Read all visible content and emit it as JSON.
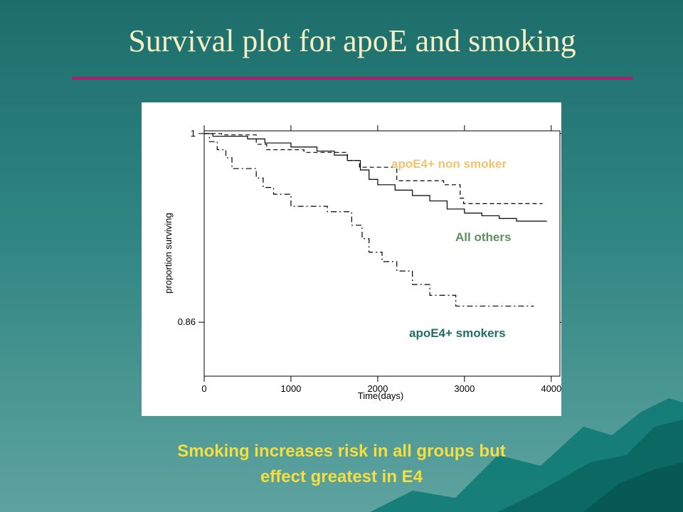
{
  "slide": {
    "title": "Survival plot for apoE and smoking",
    "caption_line1": "Smoking increases risk in all groups but",
    "caption_line2": "effect greatest in E4"
  },
  "colors": {
    "title": "#f6efc4",
    "rule": "#b01c6c",
    "caption": "#f4df3e",
    "label_non_smoker": "#f0c36e",
    "label_others": "#5f8f5e",
    "label_smokers": "#1f6e68"
  },
  "chart_data": {
    "type": "line",
    "xlabel": "Time(days)",
    "ylabel": "proportion surviving",
    "xlim": [
      0,
      4100
    ],
    "ylim": [
      0.82,
      1.002
    ],
    "x_ticks": [
      0,
      1000,
      2000,
      3000,
      4000
    ],
    "x_tick_labels": [
      "0",
      "1000",
      "2000",
      "3000",
      "4000"
    ],
    "y_ticks": [
      1,
      0.86
    ],
    "y_tick_labels": [
      "1",
      "0.86"
    ],
    "series": [
      {
        "name": "apoE4+ non smoker",
        "dash": "6,4",
        "x": [
          0,
          200,
          600,
          720,
          1150,
          1650,
          1790,
          2220,
          2760,
          2950,
          2990,
          3900
        ],
        "y": [
          1.0,
          0.999,
          0.992,
          0.988,
          0.986,
          0.98,
          0.975,
          0.965,
          0.962,
          0.952,
          0.948,
          0.948
        ]
      },
      {
        "name": "All others",
        "dash": "",
        "x": [
          0,
          100,
          500,
          700,
          1000,
          1300,
          1500,
          1650,
          1800,
          1900,
          2000,
          2200,
          2400,
          2600,
          2800,
          3000,
          3200,
          3400,
          3600,
          3950
        ],
        "y": [
          1.0,
          0.998,
          0.996,
          0.993,
          0.99,
          0.987,
          0.984,
          0.98,
          0.973,
          0.966,
          0.962,
          0.958,
          0.954,
          0.95,
          0.944,
          0.941,
          0.939,
          0.937,
          0.935,
          0.935
        ]
      },
      {
        "name": "apoE4+ smokers",
        "dash": "8,4,2,4",
        "x": [
          0,
          60,
          150,
          250,
          320,
          600,
          680,
          800,
          1000,
          1420,
          1700,
          1820,
          1900,
          2050,
          2220,
          2400,
          2600,
          2900,
          3800
        ],
        "y": [
          1.0,
          0.994,
          0.988,
          0.982,
          0.974,
          0.967,
          0.96,
          0.955,
          0.946,
          0.942,
          0.932,
          0.922,
          0.912,
          0.905,
          0.898,
          0.888,
          0.88,
          0.872,
          0.872
        ]
      }
    ],
    "annotations": {
      "non_smoker": "apoE4+ non smoker",
      "others": "All others",
      "smokers": "apoE4+ smokers"
    }
  }
}
